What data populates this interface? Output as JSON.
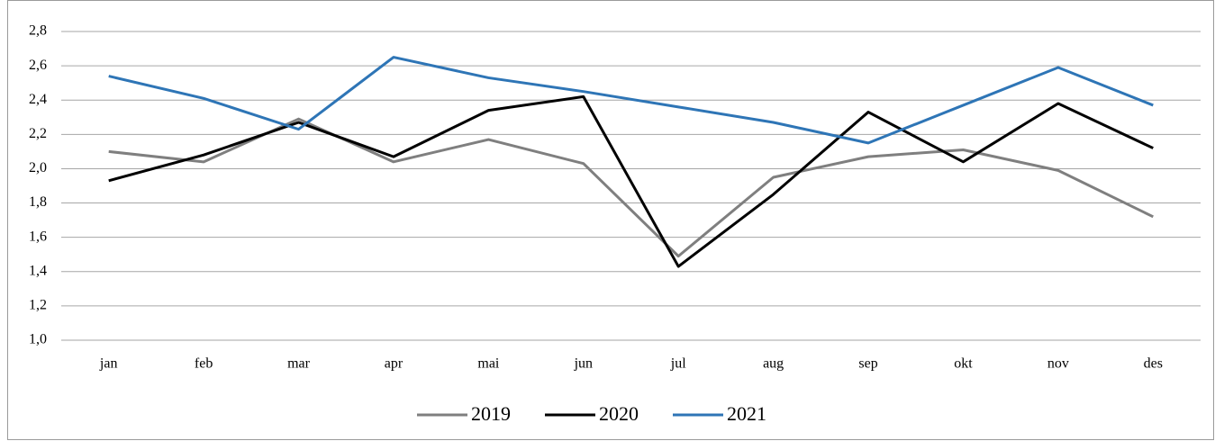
{
  "chart_data": {
    "type": "line",
    "categories": [
      "jan",
      "feb",
      "mar",
      "apr",
      "mai",
      "jun",
      "jul",
      "aug",
      "sep",
      "okt",
      "nov",
      "des"
    ],
    "series": [
      {
        "name": "2019",
        "color": "#7f7f7f",
        "values": [
          2.1,
          2.04,
          2.29,
          2.04,
          2.17,
          2.03,
          1.49,
          1.95,
          2.07,
          2.11,
          1.99,
          1.72
        ]
      },
      {
        "name": "2020",
        "color": "#000000",
        "values": [
          1.93,
          2.08,
          2.27,
          2.07,
          2.34,
          2.42,
          1.43,
          1.85,
          2.33,
          2.04,
          2.38,
          2.12
        ]
      },
      {
        "name": "2021",
        "color": "#2e75b6",
        "values": [
          2.54,
          2.41,
          2.23,
          2.65,
          2.53,
          2.45,
          2.36,
          2.27,
          2.15,
          2.37,
          2.59,
          2.37
        ]
      }
    ],
    "ylim": [
      1.0,
      2.8
    ],
    "yticks": [
      {
        "value": 1.0,
        "label": "1,0"
      },
      {
        "value": 1.2,
        "label": "1,2"
      },
      {
        "value": 1.4,
        "label": "1,4"
      },
      {
        "value": 1.6,
        "label": "1,6"
      },
      {
        "value": 1.8,
        "label": "1,8"
      },
      {
        "value": 2.0,
        "label": "2,0"
      },
      {
        "value": 2.2,
        "label": "2,2"
      },
      {
        "value": 2.4,
        "label": "2,4"
      },
      {
        "value": 2.6,
        "label": "2,6"
      },
      {
        "value": 2.8,
        "label": "2,8"
      }
    ],
    "grid": true,
    "legend": "bottom"
  }
}
